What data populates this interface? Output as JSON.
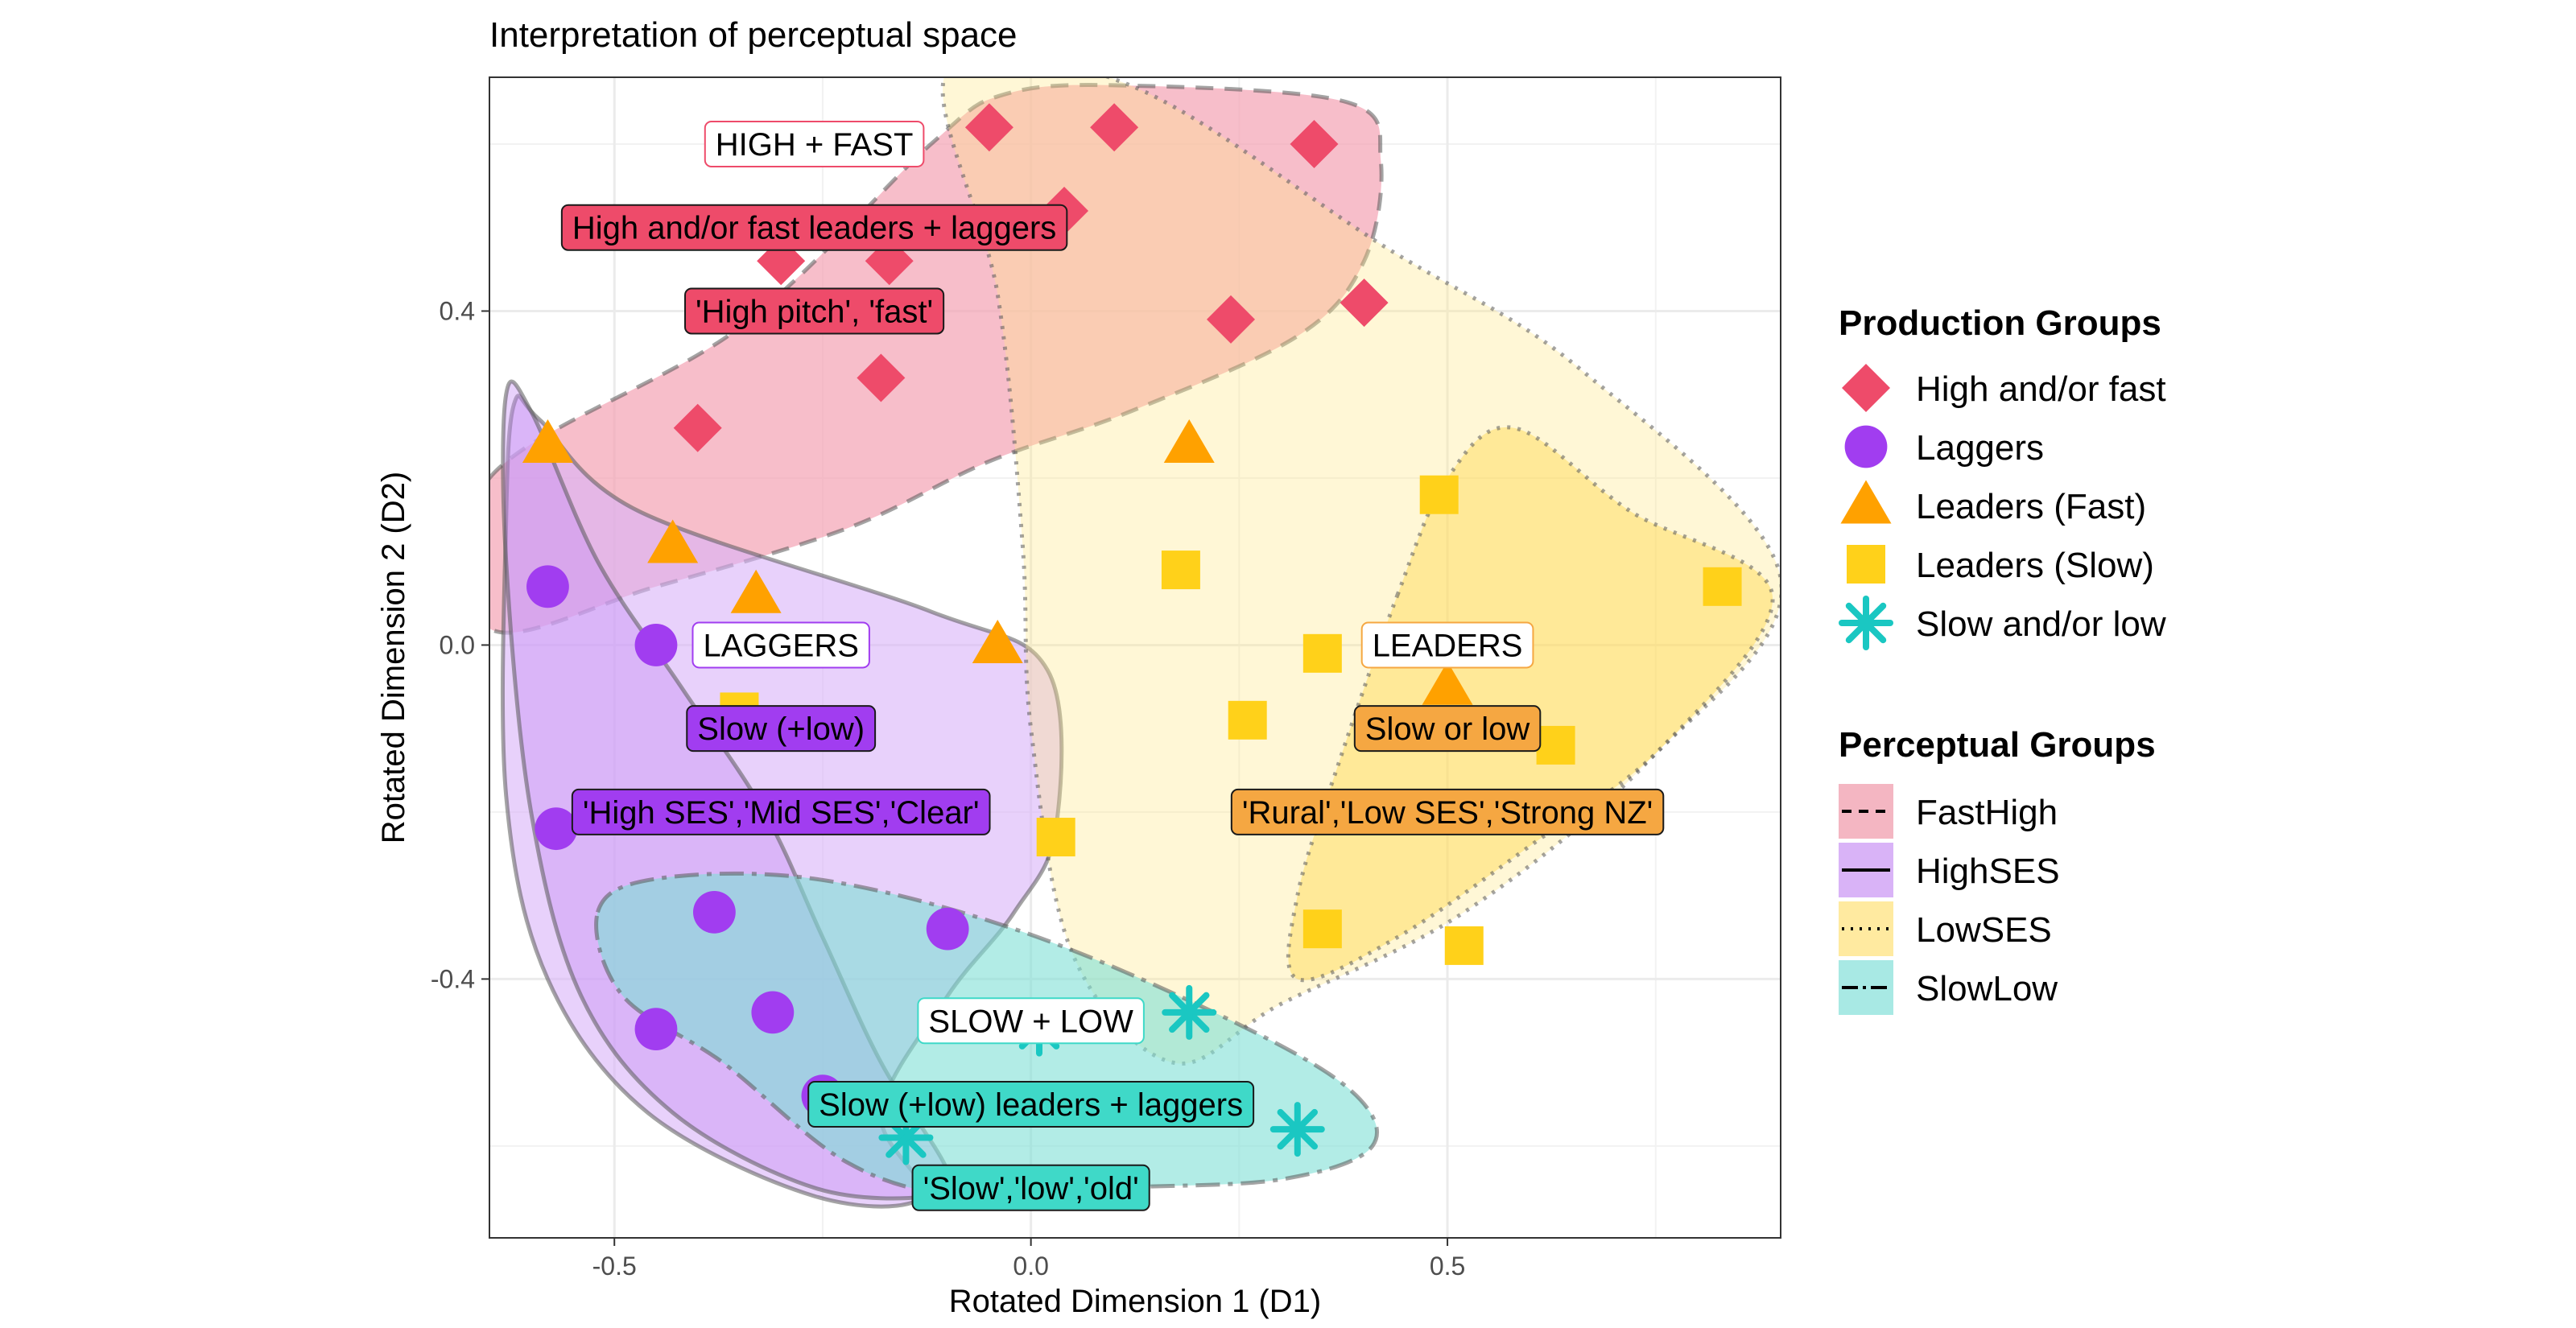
{
  "chart_data": {
    "type": "scatter",
    "title": "Interpretation of perceptual space",
    "xlabel": "Rotated Dimension 1 (D1)",
    "ylabel": "Rotated Dimension 2 (D2)",
    "xlim": [
      -0.65,
      0.9
    ],
    "ylim": [
      -0.71,
      0.68
    ],
    "x_ticks": [
      -0.5,
      0.0,
      0.5
    ],
    "x_tick_labels": [
      "-0.5",
      "0.0",
      "0.5"
    ],
    "y_ticks": [
      -0.4,
      0.0,
      0.4
    ],
    "y_tick_labels": [
      "-0.4",
      "0.0",
      "0.4"
    ],
    "grid": true,
    "legend_position": "right",
    "production_legend_title": "Production Groups",
    "perceptual_legend_title": "Perceptual Groups",
    "series": [
      {
        "name": "High and/or fast",
        "shape": "diamond",
        "color": "#ee4b6a",
        "points": [
          [
            -0.05,
            0.62
          ],
          [
            0.1,
            0.62
          ],
          [
            0.34,
            0.6
          ],
          [
            -0.3,
            0.46
          ],
          [
            -0.17,
            0.46
          ],
          [
            0.04,
            0.52
          ],
          [
            0.24,
            0.39
          ],
          [
            0.4,
            0.41
          ],
          [
            -0.18,
            0.32
          ],
          [
            -0.4,
            0.26
          ]
        ]
      },
      {
        "name": "Laggers",
        "shape": "circle",
        "color": "#a13df0",
        "points": [
          [
            -0.58,
            0.07
          ],
          [
            -0.45,
            0.0
          ],
          [
            -0.57,
            -0.22
          ],
          [
            -0.38,
            -0.32
          ],
          [
            -0.1,
            -0.34
          ],
          [
            -0.45,
            -0.46
          ],
          [
            -0.31,
            -0.44
          ],
          [
            -0.25,
            -0.54
          ]
        ]
      },
      {
        "name": "Leaders (Fast)",
        "shape": "triangle",
        "color": "#ffa100",
        "points": [
          [
            -0.58,
            0.24
          ],
          [
            -0.43,
            0.12
          ],
          [
            -0.33,
            0.06
          ],
          [
            0.19,
            0.24
          ],
          [
            -0.04,
            0.0
          ],
          [
            0.5,
            -0.05
          ]
        ]
      },
      {
        "name": "Leaders (Slow)",
        "shape": "square",
        "color": "#ffd11a",
        "points": [
          [
            0.49,
            0.18
          ],
          [
            0.18,
            0.09
          ],
          [
            0.83,
            0.07
          ],
          [
            0.35,
            -0.01
          ],
          [
            0.26,
            -0.09
          ],
          [
            0.63,
            -0.12
          ],
          [
            0.03,
            -0.23
          ],
          [
            0.35,
            -0.34
          ],
          [
            0.52,
            -0.36
          ],
          [
            -0.35,
            -0.08
          ]
        ]
      },
      {
        "name": "Slow and/or low",
        "shape": "asterisk",
        "color": "#1ac7c2",
        "points": [
          [
            0.19,
            -0.44
          ],
          [
            0.01,
            -0.46
          ],
          [
            0.32,
            -0.58
          ],
          [
            -0.15,
            -0.59
          ]
        ]
      }
    ],
    "regions": [
      {
        "name": "FastHigh",
        "fill": "#f4a3b3",
        "fill_opacity": 0.7,
        "stroke": "#5a5a5a",
        "dash": "dashed",
        "outline": [
          [
            -0.65,
            0.2
          ],
          [
            -0.35,
            0.38
          ],
          [
            -0.12,
            0.6
          ],
          [
            -0.03,
            0.66
          ],
          [
            0.12,
            0.67
          ],
          [
            0.38,
            0.65
          ],
          [
            0.42,
            0.58
          ],
          [
            0.4,
            0.46
          ],
          [
            0.32,
            0.37
          ],
          [
            0.12,
            0.28
          ],
          [
            -0.05,
            0.22
          ],
          [
            -0.22,
            0.14
          ],
          [
            -0.45,
            0.07
          ],
          [
            -0.65,
            0.02
          ]
        ]
      },
      {
        "name": "HighSES",
        "fill": "#d8b3f8",
        "fill_opacity": 0.6,
        "stroke": "#5a5a5a",
        "dash": "solid",
        "outline": [
          [
            -0.62,
            0.29
          ],
          [
            -0.59,
            0.27
          ],
          [
            -0.47,
            0.16
          ],
          [
            -0.12,
            0.04
          ],
          [
            0.02,
            -0.03
          ],
          [
            0.03,
            -0.22
          ],
          [
            -0.02,
            -0.32
          ],
          [
            -0.1,
            -0.42
          ],
          [
            -0.18,
            -0.56
          ],
          [
            -0.13,
            -0.66
          ],
          [
            -0.26,
            -0.66
          ],
          [
            -0.46,
            -0.56
          ],
          [
            -0.58,
            -0.4
          ],
          [
            -0.63,
            -0.18
          ],
          [
            -0.63,
            0.15
          ]
        ]
      },
      {
        "name": "HighSES",
        "fill": "#c58cf5",
        "fill_opacity": 0.4,
        "stroke": "#5a5a5a",
        "dash": "solid",
        "outline": [
          [
            -0.63,
            0.3
          ],
          [
            -0.6,
            0.28
          ],
          [
            -0.52,
            0.1
          ],
          [
            -0.42,
            -0.05
          ],
          [
            -0.32,
            -0.2
          ],
          [
            -0.25,
            -0.35
          ],
          [
            -0.18,
            -0.5
          ],
          [
            -0.1,
            -0.63
          ],
          [
            -0.12,
            -0.66
          ],
          [
            -0.26,
            -0.65
          ],
          [
            -0.43,
            -0.56
          ],
          [
            -0.54,
            -0.42
          ],
          [
            -0.6,
            -0.2
          ],
          [
            -0.63,
            0.1
          ]
        ]
      },
      {
        "name": "LowSES",
        "fill": "#ffe78a",
        "fill_opacity": 0.35,
        "stroke": "#5a5a5a",
        "dash": "dotted",
        "outline": [
          [
            -0.1,
            0.69
          ],
          [
            0.12,
            0.67
          ],
          [
            0.42,
            0.48
          ],
          [
            0.66,
            0.33
          ],
          [
            0.9,
            0.08
          ],
          [
            0.74,
            -0.14
          ],
          [
            0.52,
            -0.32
          ],
          [
            0.3,
            -0.43
          ],
          [
            0.17,
            -0.5
          ],
          [
            0.05,
            -0.37
          ],
          [
            0.0,
            -0.1
          ],
          [
            -0.01,
            0.12
          ],
          [
            -0.04,
            0.42
          ]
        ]
      },
      {
        "name": "LowSES",
        "fill": "#ffd84d",
        "fill_opacity": 0.45,
        "stroke": "#5a5a5a",
        "dash": "dotted",
        "outline": [
          [
            0.44,
            0.06
          ],
          [
            0.5,
            0.2
          ],
          [
            0.58,
            0.26
          ],
          [
            0.72,
            0.16
          ],
          [
            0.89,
            0.06
          ],
          [
            0.76,
            -0.12
          ],
          [
            0.6,
            -0.24
          ],
          [
            0.44,
            -0.35
          ],
          [
            0.32,
            -0.4
          ],
          [
            0.32,
            -0.3
          ],
          [
            0.37,
            -0.14
          ]
        ]
      },
      {
        "name": "SlowLow",
        "fill": "#7fe0d6",
        "fill_opacity": 0.6,
        "stroke": "#5a5a5a",
        "dash": "longdash",
        "outline": [
          [
            -0.52,
            -0.32
          ],
          [
            -0.45,
            -0.28
          ],
          [
            -0.26,
            -0.28
          ],
          [
            -0.02,
            -0.34
          ],
          [
            0.22,
            -0.44
          ],
          [
            0.38,
            -0.53
          ],
          [
            0.41,
            -0.6
          ],
          [
            0.3,
            -0.64
          ],
          [
            0.1,
            -0.65
          ],
          [
            -0.08,
            -0.66
          ],
          [
            -0.22,
            -0.62
          ],
          [
            -0.37,
            -0.5
          ],
          [
            -0.49,
            -0.42
          ]
        ]
      }
    ],
    "labels": [
      {
        "text": "HIGH + FAST",
        "x": -0.26,
        "y": 0.6,
        "style": "outline",
        "color": "#ee4b6a"
      },
      {
        "text": "High and/or fast leaders + laggers",
        "x": -0.26,
        "y": 0.5,
        "style": "filled",
        "color": "#ee4b6a"
      },
      {
        "text": "'High pitch', 'fast'",
        "x": -0.26,
        "y": 0.4,
        "style": "filled",
        "color": "#ee4b6a"
      },
      {
        "text": "LAGGERS",
        "x": -0.3,
        "y": 0.0,
        "style": "outline",
        "color": "#a13df0"
      },
      {
        "text": "Slow (+low)",
        "x": -0.3,
        "y": -0.1,
        "style": "filled",
        "color": "#a13df0"
      },
      {
        "text": "'High SES','Mid SES','Clear'",
        "x": -0.3,
        "y": -0.2,
        "style": "filled",
        "color": "#a13df0"
      },
      {
        "text": "LEADERS",
        "x": 0.5,
        "y": 0.0,
        "style": "outline",
        "color": "#f5a742"
      },
      {
        "text": "Slow or low",
        "x": 0.5,
        "y": -0.1,
        "style": "filled",
        "color": "#f5a742"
      },
      {
        "text": "'Rural','Low SES','Strong NZ'",
        "x": 0.5,
        "y": -0.2,
        "style": "filled",
        "color": "#f5a742"
      },
      {
        "text": "SLOW + LOW",
        "x": 0.0,
        "y": -0.45,
        "style": "outline",
        "color": "#3fd9c8"
      },
      {
        "text": "Slow (+low) leaders + laggers",
        "x": 0.0,
        "y": -0.55,
        "style": "filled",
        "color": "#3fd9c8"
      },
      {
        "text": "'Slow','low','old'",
        "x": 0.0,
        "y": -0.65,
        "style": "filled",
        "color": "#3fd9c8"
      }
    ],
    "production_legend": [
      {
        "name": "High and/or fast",
        "shape": "diamond",
        "color": "#ee4b6a"
      },
      {
        "name": "Laggers",
        "shape": "circle",
        "color": "#a13df0"
      },
      {
        "name": "Leaders (Fast)",
        "shape": "triangle",
        "color": "#ffa100"
      },
      {
        "name": "Leaders (Slow)",
        "shape": "square",
        "color": "#ffd11a"
      },
      {
        "name": "Slow and/or low",
        "shape": "asterisk",
        "color": "#1ac7c2"
      }
    ],
    "perceptual_legend": [
      {
        "name": "FastHigh",
        "fill": "#f4b6c2",
        "dash": "dashed"
      },
      {
        "name": "HighSES",
        "fill": "#d9b3f7",
        "dash": "solid"
      },
      {
        "name": "LowSES",
        "fill": "#ffeaa0",
        "dash": "dotted"
      },
      {
        "name": "SlowLow",
        "fill": "#a8e9e4",
        "dash": "longdash"
      }
    ]
  }
}
